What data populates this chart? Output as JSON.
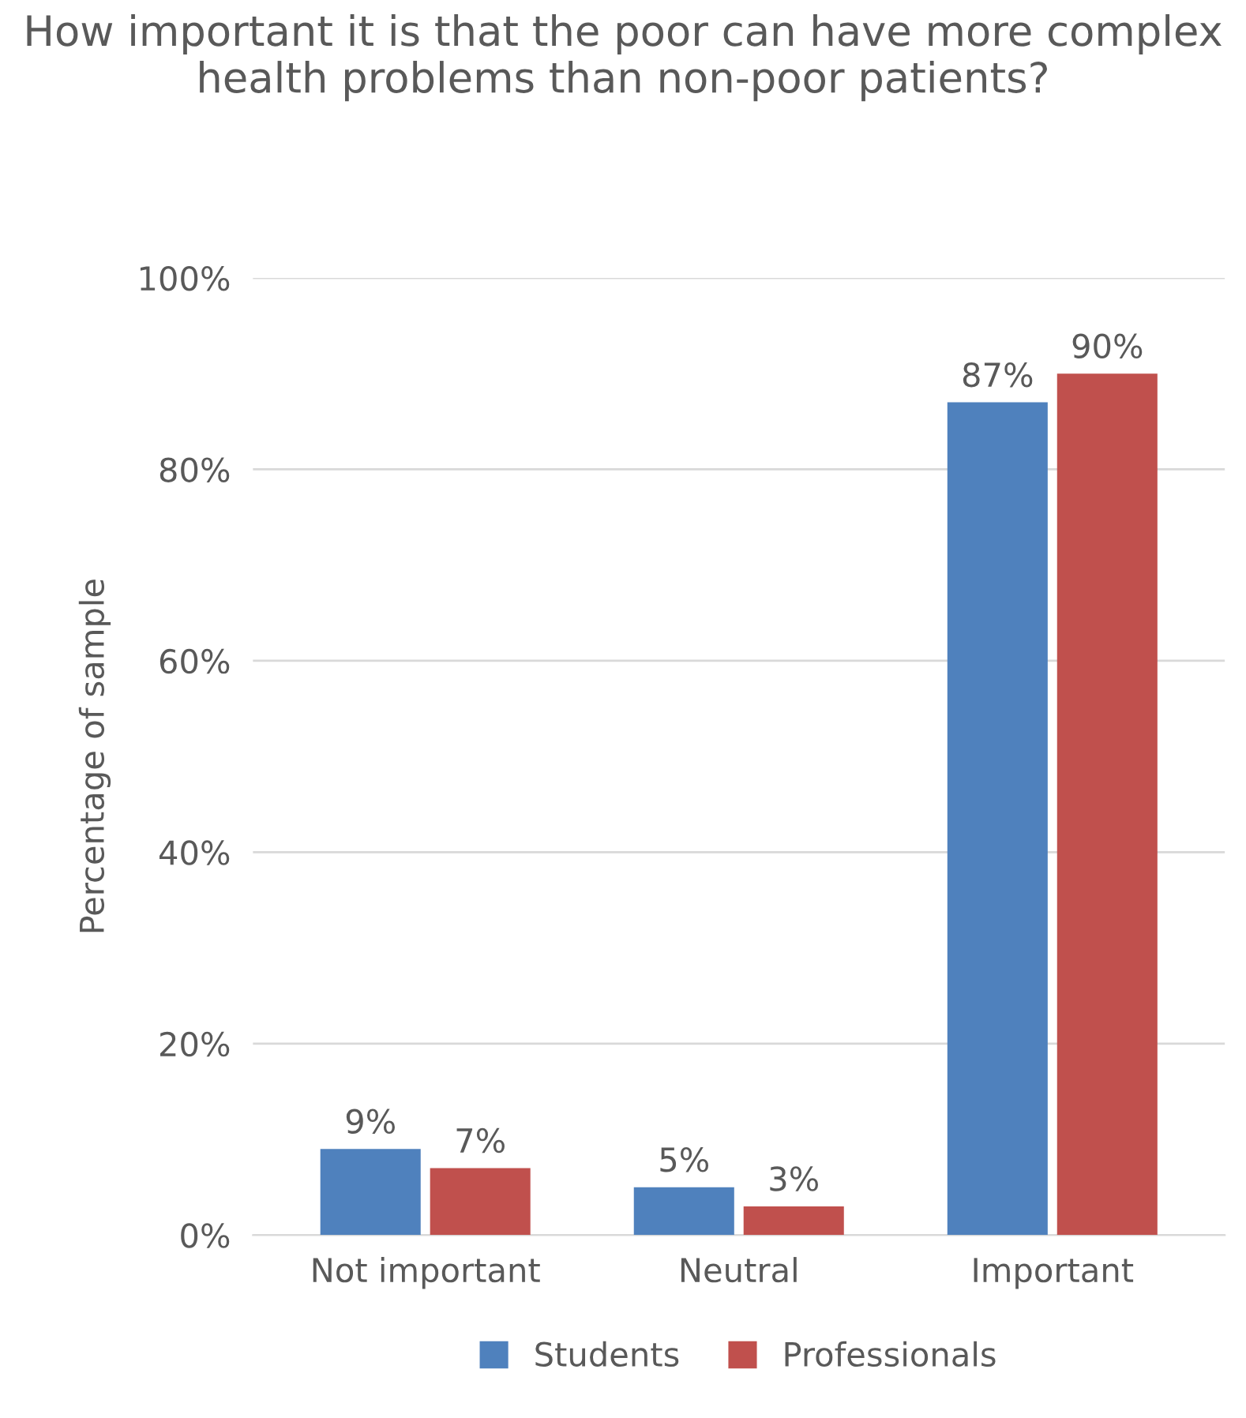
{
  "chart_data": {
    "type": "bar",
    "title": "How important it is that the poor can have more complex health problems than non-poor patients?",
    "ylabel": "Percentage of sample",
    "categories": [
      "Not important",
      "Neutral",
      "Important"
    ],
    "series": [
      {
        "name": "Students",
        "color": "#4f81bd",
        "values": [
          9,
          5,
          87
        ],
        "value_labels": [
          "9%",
          "5%",
          "87%"
        ]
      },
      {
        "name": "Professionals",
        "color": "#c0504d",
        "values": [
          7,
          3,
          90
        ],
        "value_labels": [
          "7%",
          "3%",
          "90%"
        ]
      }
    ],
    "ylim": [
      0,
      100
    ],
    "yticks": [
      {
        "value": 0,
        "label": "0%"
      },
      {
        "value": 20,
        "label": "20%"
      },
      {
        "value": 40,
        "label": "40%"
      },
      {
        "value": 60,
        "label": "60%"
      },
      {
        "value": 80,
        "label": "80%"
      },
      {
        "value": 100,
        "label": "100%"
      }
    ],
    "grid": "y",
    "legend": "bottom"
  }
}
